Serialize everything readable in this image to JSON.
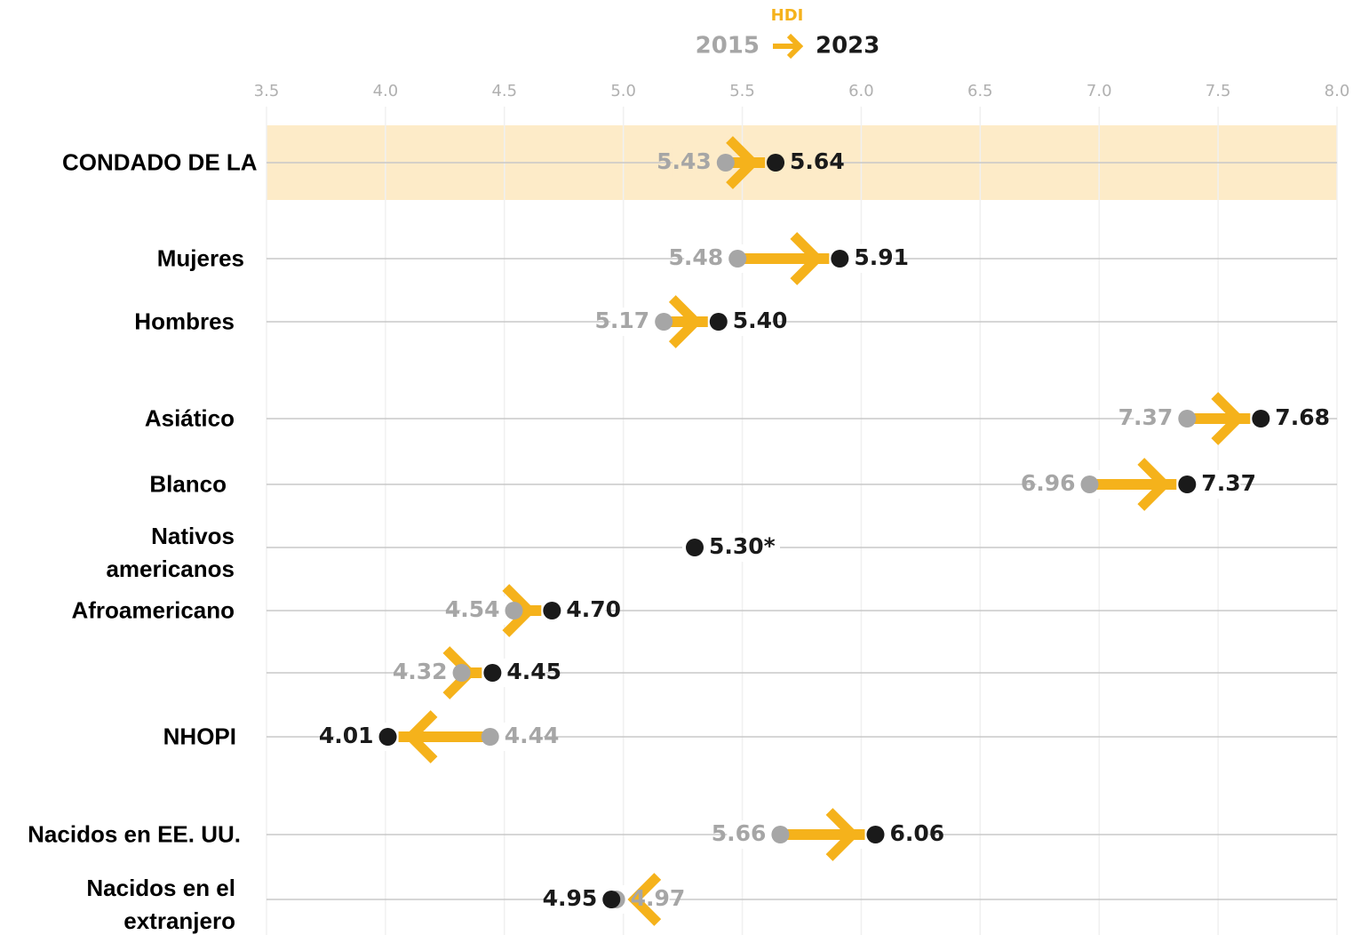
{
  "chart_data": {
    "type": "arrow",
    "legend_title": "HDI",
    "categories": [
      "CONDADO DE LA",
      "Mujeres",
      "Hombres",
      "Asiático",
      "Blanco",
      "Nativos americanos",
      "Afroamericano",
      null,
      "NHOPI",
      "Nacidos en EE. UU.",
      "Nacidos en el extranjero"
    ],
    "highlight": 0,
    "arrow_color": "#f5b21b",
    "highlight_color": "#fdebc8",
    "series": [
      {
        "name": "2015",
        "color": "#a6a6a6",
        "values": [
          5.43,
          5.48,
          5.17,
          7.37,
          6.96,
          null,
          4.54,
          4.32,
          4.44,
          5.66,
          4.97
        ],
        "value_labels": [
          "5.43",
          "5.48",
          "5.17",
          "7.37",
          "6.96",
          null,
          "4.54",
          "4.32",
          "4.44",
          "5.66",
          "4.97"
        ]
      },
      {
        "name": "2023",
        "color": "#1a1a1a",
        "values": [
          5.64,
          5.91,
          5.4,
          7.68,
          7.37,
          5.3,
          4.7,
          4.45,
          4.01,
          6.06,
          4.95
        ],
        "value_labels": [
          "5.64",
          "5.91",
          "5.40",
          "7.68",
          "7.37",
          "5.30*",
          "4.70",
          "4.45",
          "4.01",
          "6.06",
          "4.95"
        ]
      }
    ],
    "xlim": [
      3.5,
      8.0
    ],
    "xticks": [
      3.5,
      {
        "value": 4,
        "label": "4.0"
      },
      4.5,
      {
        "value": 5,
        "label": "5.0"
      },
      5.5,
      {
        "value": 6,
        "label": "6.0"
      },
      6.5,
      {
        "value": 7,
        "label": "7.0"
      },
      7.5,
      {
        "value": 8,
        "label": "8.0"
      }
    ],
    "grid": true
  }
}
